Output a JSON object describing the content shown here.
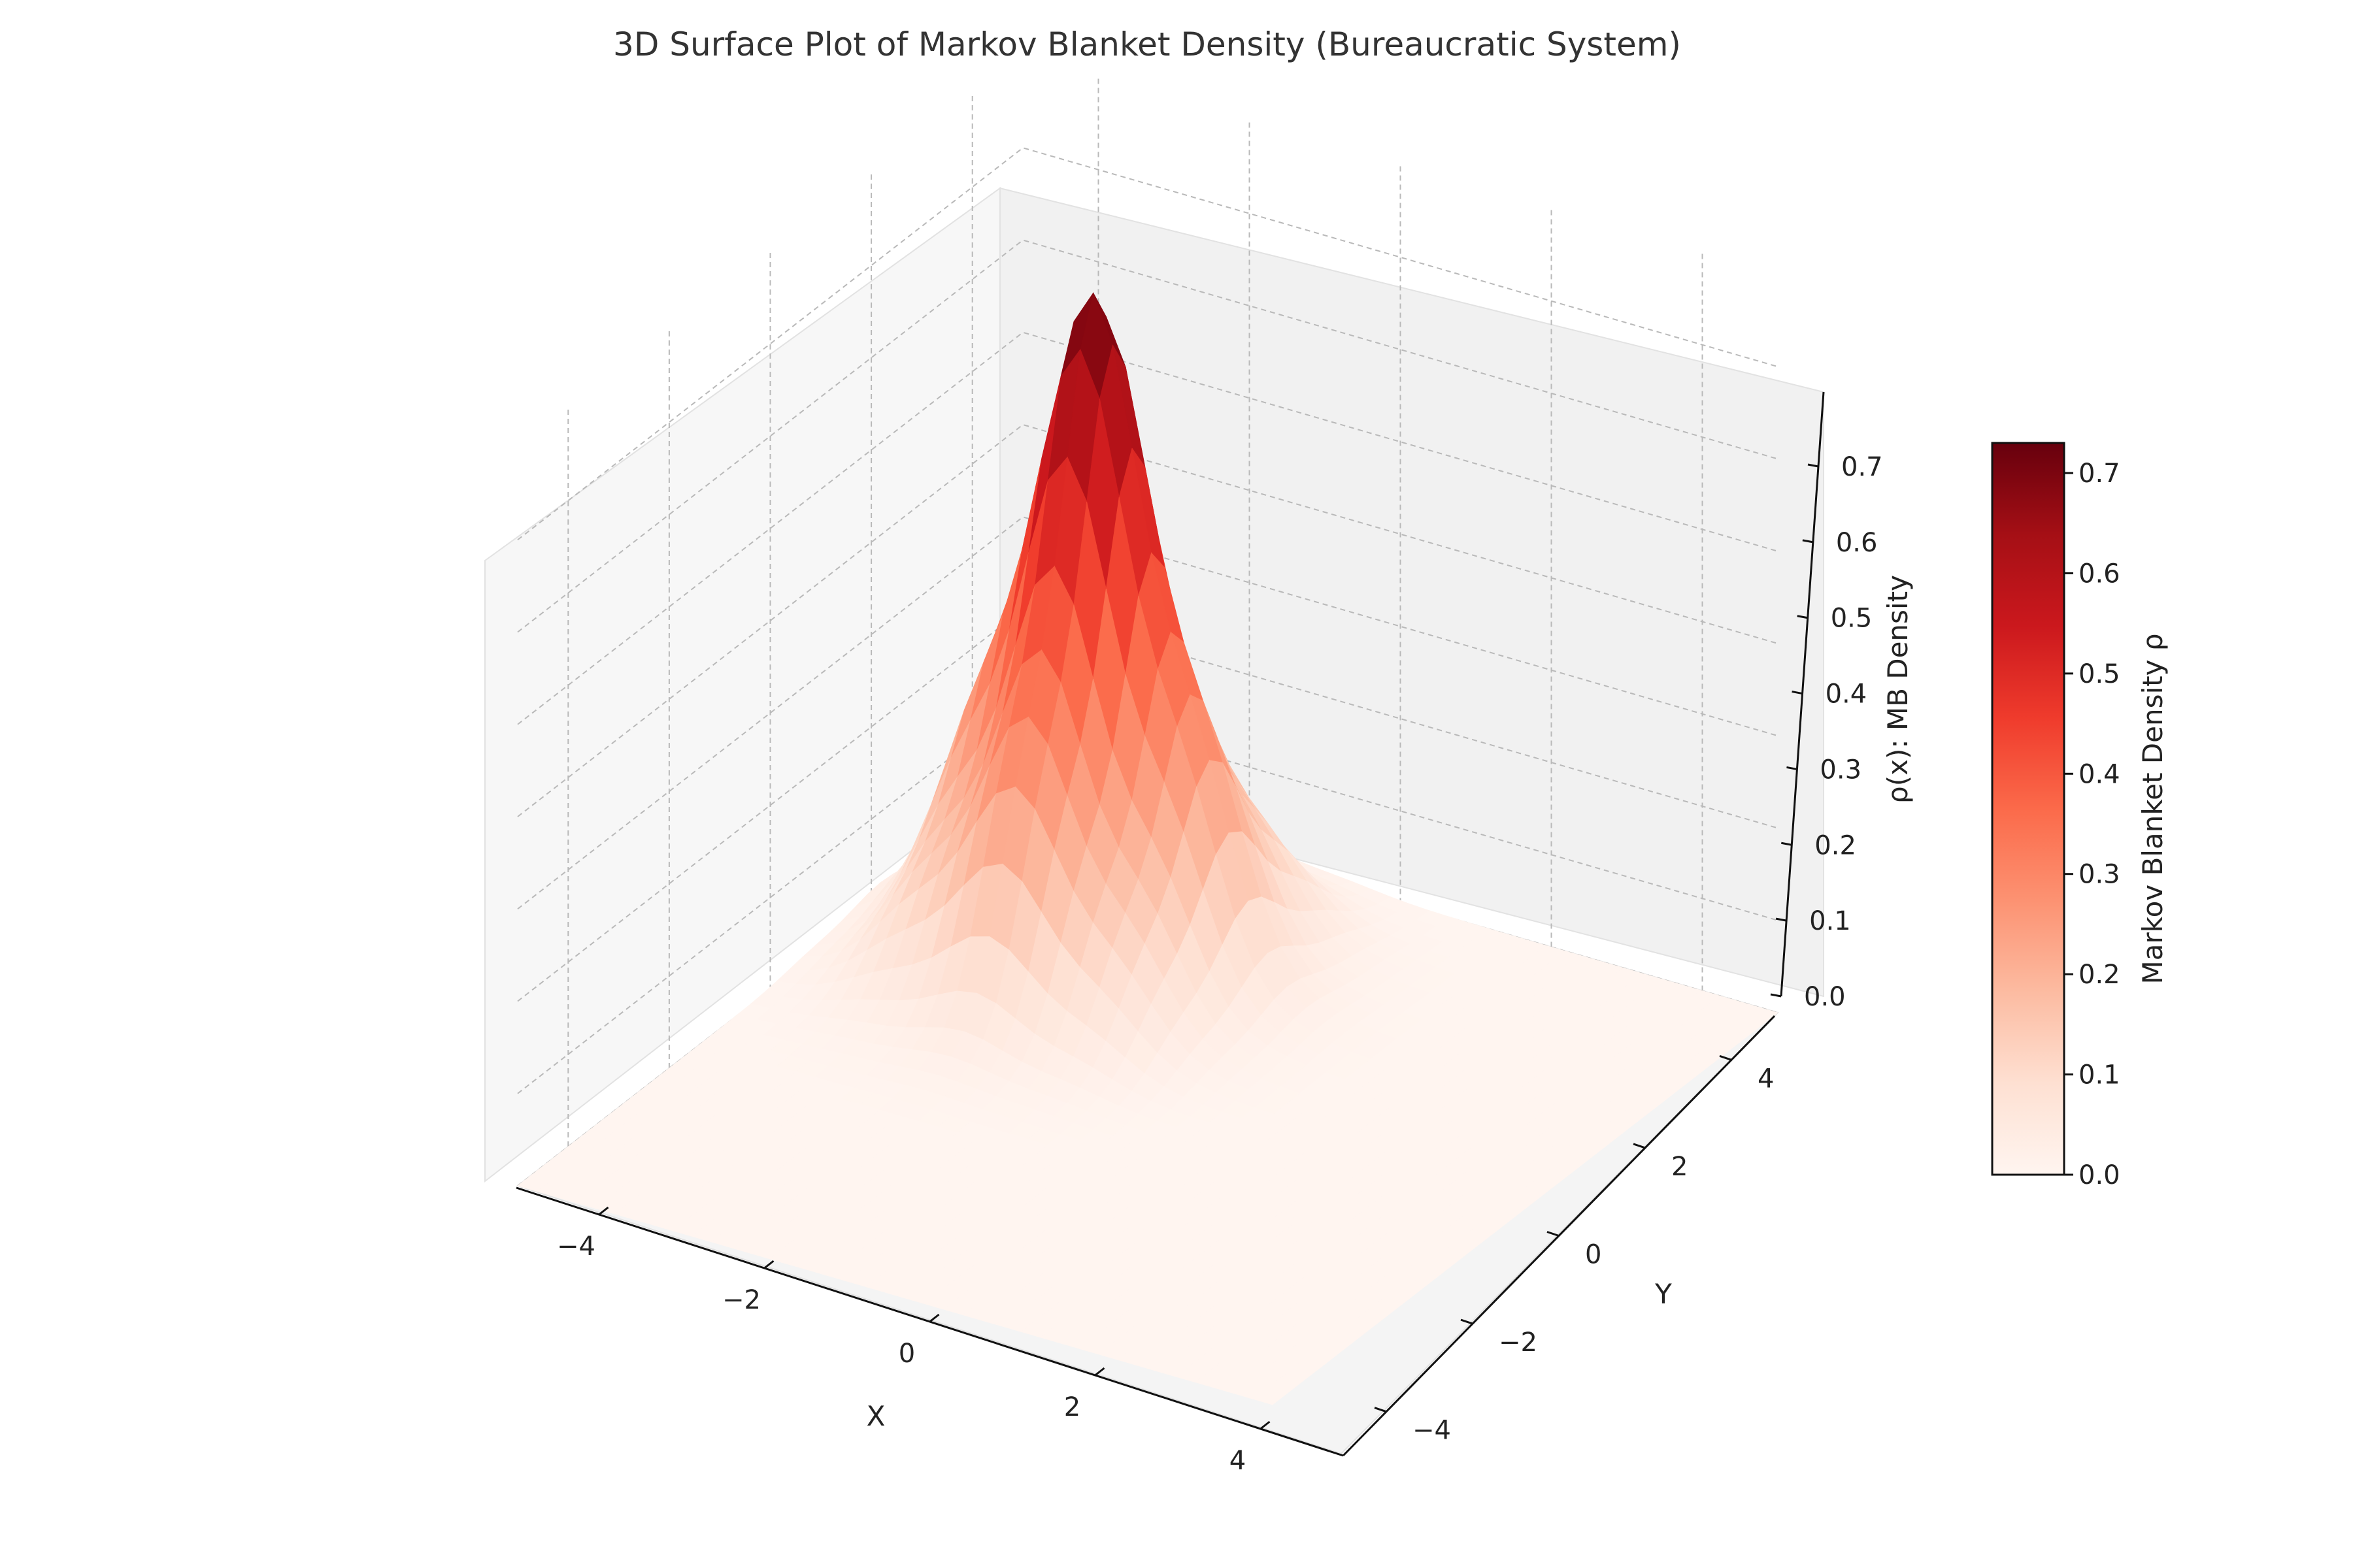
{
  "chart_data": {
    "type": "surface",
    "title": "3D Surface Plot of Markov Blanket Density (Bureaucratic System)",
    "xlabel": "X",
    "ylabel": "Y",
    "zlabel": "ρ(x): MB Density",
    "colorbar_label": "Markov Blanket Density ρ",
    "colormap": "Reds",
    "xlim": [
      -5,
      5
    ],
    "ylim": [
      -5,
      5
    ],
    "zlim": [
      0,
      0.8
    ],
    "x_ticks": [
      "−4",
      "−2",
      "0",
      "2",
      "4"
    ],
    "x_tick_values": [
      -4,
      -2,
      0,
      2,
      4
    ],
    "y_ticks": [
      "−4",
      "−2",
      "0",
      "2",
      "4"
    ],
    "y_tick_values": [
      -4,
      -2,
      0,
      2,
      4
    ],
    "z_ticks": [
      "0.0",
      "0.1",
      "0.2",
      "0.3",
      "0.4",
      "0.5",
      "0.6",
      "0.7"
    ],
    "z_tick_values": [
      0,
      0.1,
      0.2,
      0.3,
      0.4,
      0.5,
      0.6,
      0.7
    ],
    "colorbar_ticks": [
      "0.0",
      "0.1",
      "0.2",
      "0.3",
      "0.4",
      "0.5",
      "0.6",
      "0.7"
    ],
    "colorbar_range": [
      0,
      0.73
    ],
    "surface": {
      "peak_x": -2.2,
      "peak_y": 2.2,
      "peak_value": 0.73,
      "spread": 0.55,
      "ripple_frequency": 3.5,
      "ripple_amplitude": 0.18,
      "grid_range": [
        -5,
        5
      ],
      "grid_points": 40
    },
    "grid": true
  }
}
